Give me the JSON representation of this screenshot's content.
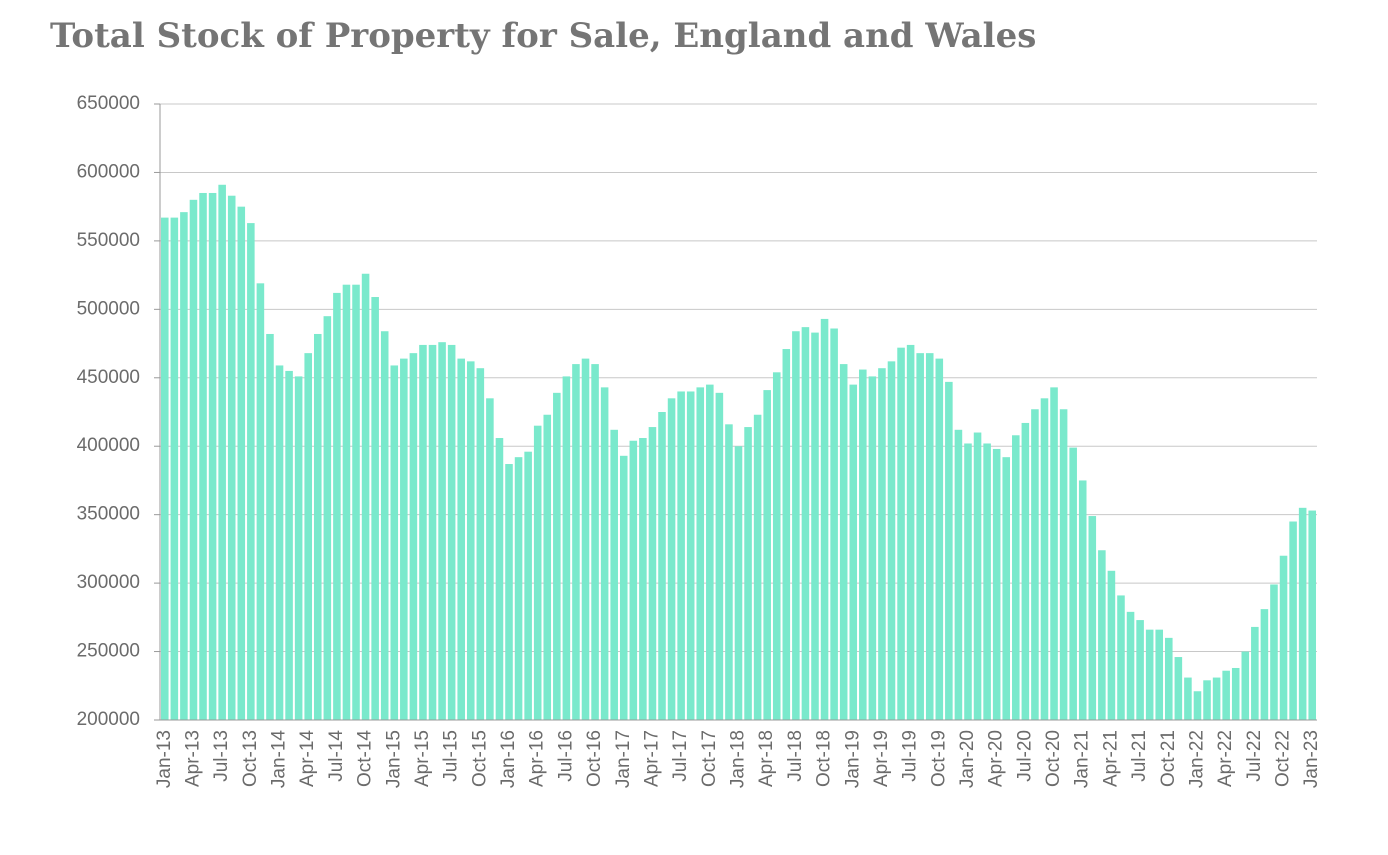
{
  "chart_data": {
    "type": "bar",
    "title": "Total Stock of Property for Sale, England and Wales",
    "categories": [
      "Jan-13",
      null,
      null,
      "Apr-13",
      null,
      null,
      "Jul-13",
      null,
      null,
      "Oct-13",
      null,
      null,
      "Jan-14",
      null,
      null,
      "Apr-14",
      null,
      null,
      "Jul-14",
      null,
      null,
      "Oct-14",
      null,
      null,
      "Jan-15",
      null,
      null,
      "Apr-15",
      null,
      null,
      "Jul-15",
      null,
      null,
      "Oct-15",
      null,
      null,
      "Jan-16",
      null,
      null,
      "Apr-16",
      null,
      null,
      "Jul-16",
      null,
      null,
      "Oct-16",
      null,
      null,
      "Jan-17",
      null,
      null,
      "Apr-17",
      null,
      null,
      "Jul-17",
      null,
      null,
      "Oct-17",
      null,
      null,
      "Jan-18",
      null,
      null,
      "Apr-18",
      null,
      null,
      "Jul-18",
      null,
      null,
      "Oct-18",
      null,
      null,
      "Jan-19",
      null,
      null,
      "Apr-19",
      null,
      null,
      "Jul-19",
      null,
      null,
      "Oct-19",
      null,
      null,
      "Jan-20",
      null,
      null,
      "Apr-20",
      null,
      null,
      "Jul-20",
      null,
      null,
      "Oct-20",
      null,
      null,
      "Jan-21",
      null,
      null,
      "Apr-21",
      null,
      null,
      "Jul-21",
      null,
      null,
      "Oct-21",
      null,
      null,
      "Jan-22",
      null,
      null,
      "Apr-22",
      null,
      null,
      "Jul-22",
      null,
      null,
      "Oct-22",
      null,
      null,
      "Jan-23"
    ],
    "values": [
      567000,
      567000,
      571000,
      580000,
      585000,
      585000,
      591000,
      583000,
      575000,
      563000,
      519000,
      482000,
      459000,
      455000,
      451000,
      468000,
      482000,
      495000,
      512000,
      518000,
      518000,
      526000,
      509000,
      484000,
      459000,
      464000,
      468000,
      474000,
      474000,
      476000,
      474000,
      464000,
      462000,
      457000,
      435000,
      406000,
      387000,
      392000,
      396000,
      415000,
      423000,
      439000,
      451000,
      460000,
      464000,
      460000,
      443000,
      412000,
      393000,
      404000,
      406000,
      414000,
      425000,
      435000,
      440000,
      440000,
      443000,
      445000,
      439000,
      416000,
      400000,
      414000,
      423000,
      441000,
      454000,
      471000,
      484000,
      487000,
      483000,
      493000,
      486000,
      460000,
      445000,
      456000,
      451000,
      457000,
      462000,
      472000,
      474000,
      468000,
      468000,
      464000,
      447000,
      412000,
      402000,
      410000,
      402000,
      398000,
      392000,
      408000,
      417000,
      427000,
      435000,
      443000,
      427000,
      399000,
      375000,
      349000,
      324000,
      309000,
      291000,
      279000,
      273000,
      266000,
      266000,
      260000,
      246000,
      231000,
      221000,
      229000,
      231000,
      236000,
      238000,
      250000,
      268000,
      281000,
      299000,
      320000,
      345000,
      355000,
      353000
    ],
    "color": "#7ae9cc",
    "ylim": [
      200000,
      650000
    ],
    "yticks": [
      200000,
      250000,
      300000,
      350000,
      400000,
      450000,
      500000,
      550000,
      600000,
      650000
    ],
    "grid": true
  }
}
